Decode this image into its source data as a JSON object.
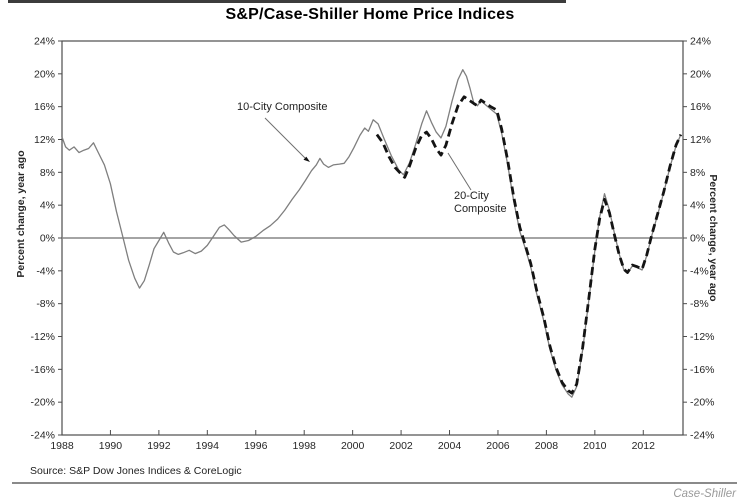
{
  "title": "S&P/Case-Shiller Home Price Indices",
  "source_note": "Source: S&P Dow Jones Indices & CoreLogic",
  "watermark": "Case-Shiller",
  "annotations": {
    "series1": "10-City Composite",
    "series2": "20-City Composite"
  },
  "colors": {
    "solid_line": "#7f7f7f",
    "dashed_line": "#141414",
    "zero_line": "#858585",
    "plot_border": "#4d4d4d",
    "axis_text": "#262626",
    "tick_mark": "#4d4d4d",
    "pointer_line": "#6e6e6e",
    "watermark_text": "#9a9a9a"
  },
  "chart_data": {
    "type": "line",
    "title": "S&P/Case-Shiller Home Price Indices",
    "xlabel": "",
    "ylabel_left": "Percent change, year ago",
    "ylabel_right": "Percent change, year ago",
    "xlim": [
      1988,
      2013.64
    ],
    "ylim": [
      -24,
      24
    ],
    "grid": false,
    "legend_position": "inline-annotations",
    "xticks": [
      1988,
      1990,
      1992,
      1994,
      1996,
      1998,
      2000,
      2002,
      2004,
      2006,
      2008,
      2010,
      2012
    ],
    "yticks": [
      24,
      20,
      16,
      12,
      8,
      4,
      0,
      -4,
      -8,
      -12,
      -16,
      -20,
      -24
    ],
    "ytick_labels": [
      "24%",
      "20%",
      "16%",
      "12%",
      "8%",
      "4%",
      "0%",
      "-4%",
      "-8%",
      "-12%",
      "-16%",
      "-20%",
      "-24%"
    ],
    "zero_baseline": 0,
    "series": [
      {
        "name": "10-City Composite",
        "style": "solid",
        "points": [
          [
            1988.0,
            12.3
          ],
          [
            1988.15,
            11.1
          ],
          [
            1988.3,
            10.7
          ],
          [
            1988.5,
            11.1
          ],
          [
            1988.7,
            10.4
          ],
          [
            1988.9,
            10.7
          ],
          [
            1989.1,
            10.9
          ],
          [
            1989.3,
            11.6
          ],
          [
            1989.5,
            10.4
          ],
          [
            1989.75,
            8.9
          ],
          [
            1990.0,
            6.6
          ],
          [
            1990.25,
            3.2
          ],
          [
            1990.5,
            0.3
          ],
          [
            1990.75,
            -2.7
          ],
          [
            1991.0,
            -4.9
          ],
          [
            1991.2,
            -6.1
          ],
          [
            1991.4,
            -5.2
          ],
          [
            1991.6,
            -3.3
          ],
          [
            1991.8,
            -1.3
          ],
          [
            1992.0,
            -0.3
          ],
          [
            1992.2,
            0.7
          ],
          [
            1992.4,
            -0.6
          ],
          [
            1992.6,
            -1.7
          ],
          [
            1992.8,
            -2.0
          ],
          [
            1993.0,
            -1.8
          ],
          [
            1993.25,
            -1.5
          ],
          [
            1993.5,
            -1.9
          ],
          [
            1993.75,
            -1.6
          ],
          [
            1994.0,
            -0.9
          ],
          [
            1994.25,
            0.2
          ],
          [
            1994.5,
            1.3
          ],
          [
            1994.7,
            1.6
          ],
          [
            1994.9,
            1.0
          ],
          [
            1995.1,
            0.3
          ],
          [
            1995.4,
            -0.5
          ],
          [
            1995.7,
            -0.3
          ],
          [
            1996.0,
            0.2
          ],
          [
            1996.3,
            0.9
          ],
          [
            1996.6,
            1.5
          ],
          [
            1996.9,
            2.3
          ],
          [
            1997.2,
            3.4
          ],
          [
            1997.5,
            4.7
          ],
          [
            1997.8,
            5.9
          ],
          [
            1998.05,
            7.0
          ],
          [
            1998.3,
            8.2
          ],
          [
            1998.5,
            8.9
          ],
          [
            1998.65,
            9.7
          ],
          [
            1998.8,
            9.0
          ],
          [
            1999.0,
            8.6
          ],
          [
            1999.2,
            8.9
          ],
          [
            1999.45,
            9.0
          ],
          [
            1999.65,
            9.1
          ],
          [
            1999.85,
            9.9
          ],
          [
            2000.05,
            11.0
          ],
          [
            2000.3,
            12.5
          ],
          [
            2000.5,
            13.4
          ],
          [
            2000.65,
            13.0
          ],
          [
            2000.85,
            14.4
          ],
          [
            2001.05,
            13.9
          ],
          [
            2001.3,
            12.1
          ],
          [
            2001.6,
            10.0
          ],
          [
            2001.9,
            8.3
          ],
          [
            2002.1,
            7.7
          ],
          [
            2002.35,
            9.2
          ],
          [
            2002.6,
            11.4
          ],
          [
            2002.85,
            13.9
          ],
          [
            2003.05,
            15.5
          ],
          [
            2003.25,
            14.1
          ],
          [
            2003.45,
            12.9
          ],
          [
            2003.65,
            12.2
          ],
          [
            2003.85,
            13.6
          ],
          [
            2004.1,
            16.6
          ],
          [
            2004.35,
            19.3
          ],
          [
            2004.55,
            20.5
          ],
          [
            2004.7,
            19.7
          ],
          [
            2004.85,
            18.2
          ],
          [
            2005.0,
            16.5
          ],
          [
            2005.15,
            16.1
          ],
          [
            2005.3,
            16.7
          ],
          [
            2005.5,
            16.2
          ],
          [
            2005.7,
            15.7
          ],
          [
            2005.95,
            15.1
          ],
          [
            2006.15,
            12.8
          ],
          [
            2006.4,
            9.0
          ],
          [
            2006.65,
            4.5
          ],
          [
            2006.9,
            0.8
          ],
          [
            2007.1,
            -1.0
          ],
          [
            2007.35,
            -3.5
          ],
          [
            2007.6,
            -6.8
          ],
          [
            2007.9,
            -10.2
          ],
          [
            2008.15,
            -13.6
          ],
          [
            2008.4,
            -16.1
          ],
          [
            2008.65,
            -17.9
          ],
          [
            2008.9,
            -19.0
          ],
          [
            2009.05,
            -19.4
          ],
          [
            2009.25,
            -18.1
          ],
          [
            2009.5,
            -13.6
          ],
          [
            2009.75,
            -7.6
          ],
          [
            2010.0,
            -1.6
          ],
          [
            2010.2,
            2.6
          ],
          [
            2010.4,
            5.4
          ],
          [
            2010.6,
            3.4
          ],
          [
            2010.8,
            0.7
          ],
          [
            2011.0,
            -1.9
          ],
          [
            2011.2,
            -3.9
          ],
          [
            2011.35,
            -4.3
          ],
          [
            2011.55,
            -3.4
          ],
          [
            2011.75,
            -3.6
          ],
          [
            2011.95,
            -3.9
          ],
          [
            2012.15,
            -2.1
          ],
          [
            2012.35,
            0.3
          ],
          [
            2012.6,
            2.9
          ],
          [
            2012.85,
            5.6
          ],
          [
            2013.1,
            8.6
          ],
          [
            2013.35,
            11.2
          ],
          [
            2013.55,
            12.6
          ]
        ]
      },
      {
        "name": "20-City Composite",
        "style": "dashed",
        "points": [
          [
            2001.0,
            12.6
          ],
          [
            2001.25,
            11.6
          ],
          [
            2001.5,
            9.9
          ],
          [
            2001.75,
            8.6
          ],
          [
            2002.0,
            7.8
          ],
          [
            2002.15,
            7.4
          ],
          [
            2002.35,
            8.8
          ],
          [
            2002.6,
            10.9
          ],
          [
            2002.85,
            12.5
          ],
          [
            2003.05,
            12.9
          ],
          [
            2003.25,
            12.1
          ],
          [
            2003.45,
            10.9
          ],
          [
            2003.65,
            10.1
          ],
          [
            2003.85,
            11.3
          ],
          [
            2004.1,
            13.9
          ],
          [
            2004.35,
            16.1
          ],
          [
            2004.6,
            17.2
          ],
          [
            2004.8,
            16.8
          ],
          [
            2005.0,
            16.4
          ],
          [
            2005.15,
            16.1
          ],
          [
            2005.3,
            16.8
          ],
          [
            2005.5,
            16.4
          ],
          [
            2005.7,
            16.0
          ],
          [
            2005.95,
            15.6
          ],
          [
            2006.15,
            13.3
          ],
          [
            2006.4,
            9.5
          ],
          [
            2006.65,
            5.0
          ],
          [
            2006.9,
            1.3
          ],
          [
            2007.1,
            -0.6
          ],
          [
            2007.35,
            -3.1
          ],
          [
            2007.6,
            -6.4
          ],
          [
            2007.9,
            -9.8
          ],
          [
            2008.15,
            -13.2
          ],
          [
            2008.4,
            -15.8
          ],
          [
            2008.65,
            -17.6
          ],
          [
            2008.9,
            -18.6
          ],
          [
            2009.05,
            -18.9
          ],
          [
            2009.25,
            -17.8
          ],
          [
            2009.5,
            -13.3
          ],
          [
            2009.75,
            -7.4
          ],
          [
            2010.0,
            -1.4
          ],
          [
            2010.2,
            2.4
          ],
          [
            2010.4,
            4.7
          ],
          [
            2010.6,
            3.1
          ],
          [
            2010.8,
            0.5
          ],
          [
            2011.0,
            -2.0
          ],
          [
            2011.2,
            -3.8
          ],
          [
            2011.35,
            -4.2
          ],
          [
            2011.55,
            -3.3
          ],
          [
            2011.75,
            -3.5
          ],
          [
            2011.95,
            -3.8
          ],
          [
            2012.15,
            -2.0
          ],
          [
            2012.35,
            0.4
          ],
          [
            2012.6,
            3.0
          ],
          [
            2012.85,
            5.7
          ],
          [
            2013.1,
            8.7
          ],
          [
            2013.35,
            11.3
          ],
          [
            2013.55,
            12.6
          ]
        ]
      }
    ]
  }
}
